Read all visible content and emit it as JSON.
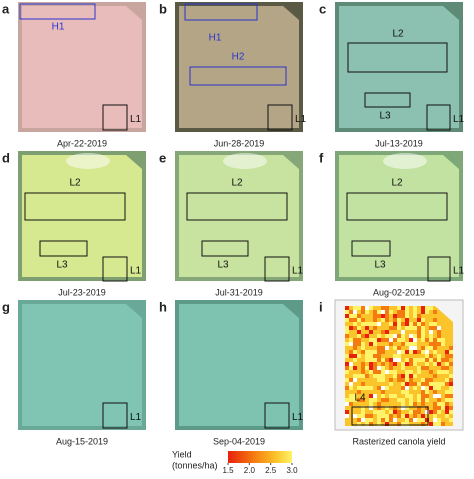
{
  "panels": [
    {
      "letter": "a",
      "caption": "Apr-22-2019",
      "boxes": [
        {
          "label": "H1",
          "color": "#2a35d0"
        },
        {
          "label": "L1",
          "color": "#111111"
        }
      ]
    },
    {
      "letter": "b",
      "caption": "Jun-28-2019",
      "boxes": [
        {
          "label": "H1",
          "color": "#2a35d0"
        },
        {
          "label": "H2",
          "color": "#2a35d0"
        },
        {
          "label": "L1",
          "color": "#111111"
        }
      ]
    },
    {
      "letter": "c",
      "caption": "Jul-13-2019",
      "boxes": [
        {
          "label": "L2",
          "color": "#111111"
        },
        {
          "label": "L3",
          "color": "#111111"
        },
        {
          "label": "L1",
          "color": "#111111"
        }
      ]
    },
    {
      "letter": "d",
      "caption": "Jul-23-2019",
      "boxes": [
        {
          "label": "L2",
          "color": "#111111"
        },
        {
          "label": "L3",
          "color": "#111111"
        },
        {
          "label": "L1",
          "color": "#111111"
        }
      ]
    },
    {
      "letter": "e",
      "caption": "Jul-31-2019",
      "boxes": [
        {
          "label": "L2",
          "color": "#111111"
        },
        {
          "label": "L3",
          "color": "#111111"
        },
        {
          "label": "L1",
          "color": "#111111"
        }
      ]
    },
    {
      "letter": "f",
      "caption": "Aug-02-2019",
      "boxes": [
        {
          "label": "L2",
          "color": "#111111"
        },
        {
          "label": "L3",
          "color": "#111111"
        },
        {
          "label": "L1",
          "color": "#111111"
        }
      ]
    },
    {
      "letter": "g",
      "caption": "Aug-15-2019",
      "boxes": [
        {
          "label": "L1",
          "color": "#111111"
        }
      ]
    },
    {
      "letter": "h",
      "caption": "Sep-04-2019",
      "boxes": [
        {
          "label": "L1",
          "color": "#111111"
        }
      ]
    },
    {
      "letter": "i",
      "caption": "Rasterized canola yield",
      "boxes": [
        {
          "label": "L4",
          "color": "#111111"
        }
      ]
    }
  ],
  "colorbar": {
    "label_lines": [
      "Yield",
      "(tonnes/ha)"
    ],
    "lim": [
      1.5,
      3.0
    ],
    "ticks": [
      1.5,
      {
        "value": 2,
        "label": "2.0"
      },
      2.5,
      {
        "value": 3,
        "label": "3.0"
      }
    ]
  }
}
